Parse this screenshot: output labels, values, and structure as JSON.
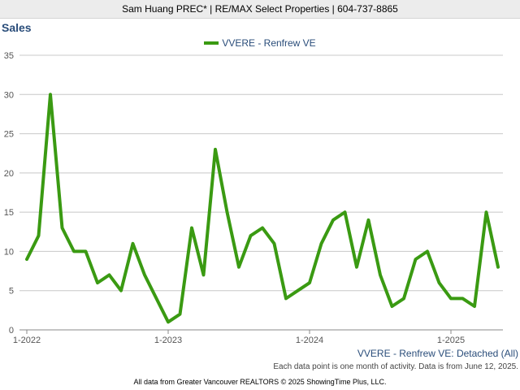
{
  "header": {
    "text": "Sam Huang PREC* | RE/MAX Select Properties | 604-737-8865"
  },
  "footer": {
    "series_label": "VVERE - Renfrew VE: Detached (All)",
    "note": "Each data point is one month of activity. Data is from June 12, 2025.",
    "credit": "All data from Greater Vancouver REALTORS © 2025 ShowingTime Plus, LLC."
  },
  "chart_data": {
    "type": "line",
    "title": "Sales",
    "xlabel": "",
    "ylabel": "",
    "ylim": [
      0,
      35
    ],
    "yticks": [
      0,
      5,
      10,
      15,
      20,
      25,
      30,
      35
    ],
    "xticks": [
      "1-2022",
      "1-2023",
      "1-2024",
      "1-2025"
    ],
    "grid": true,
    "legend_position": "top-center",
    "x": [
      "1-2022",
      "2-2022",
      "3-2022",
      "4-2022",
      "5-2022",
      "6-2022",
      "7-2022",
      "8-2022",
      "9-2022",
      "10-2022",
      "11-2022",
      "12-2022",
      "1-2023",
      "2-2023",
      "3-2023",
      "4-2023",
      "5-2023",
      "6-2023",
      "7-2023",
      "8-2023",
      "9-2023",
      "10-2023",
      "11-2023",
      "12-2023",
      "1-2024",
      "2-2024",
      "3-2024",
      "4-2024",
      "5-2024",
      "6-2024",
      "7-2024",
      "8-2024",
      "9-2024",
      "10-2024",
      "11-2024",
      "12-2024",
      "1-2025",
      "2-2025",
      "3-2025",
      "4-2025",
      "5-2025"
    ],
    "series": [
      {
        "name": "VVERE - Renfrew VE",
        "color": "#3a9a12",
        "values": [
          9,
          12,
          30,
          13,
          10,
          10,
          6,
          7,
          5,
          11,
          7,
          4,
          1,
          2,
          13,
          7,
          23,
          15,
          8,
          12,
          13,
          11,
          4,
          5,
          6,
          11,
          14,
          15,
          8,
          14,
          7,
          3,
          4,
          9,
          10,
          6,
          4,
          4,
          3,
          15,
          8
        ]
      }
    ]
  }
}
